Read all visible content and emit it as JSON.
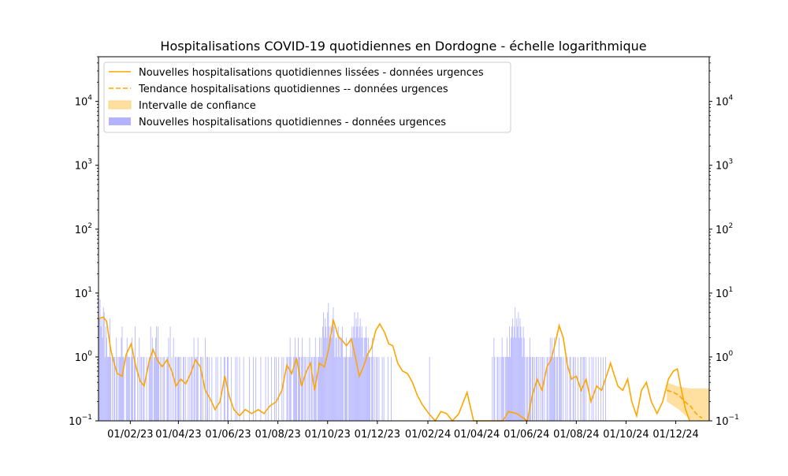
{
  "colors": {
    "bars": "#b3b3ff",
    "smoothed": "#ffa500",
    "trend": "#ffa500",
    "confidence": "#ffd580"
  },
  "chart_data": {
    "type": "bar",
    "title": "Hospitalisations COVID-19 quotidiennes en Dordogne - échelle logarithmique",
    "xlabel": "",
    "ylabel": "",
    "y_scale": "log",
    "ylim": [
      0.1,
      50000
    ],
    "xlim": [
      "2022-12-24",
      "2025-01-11"
    ],
    "x_ticks": [
      "01/02/23",
      "01/04/23",
      "01/06/23",
      "01/08/23",
      "01/10/23",
      "01/12/23",
      "01/02/24",
      "01/04/24",
      "01/06/24",
      "01/08/24",
      "01/10/24",
      "01/12/24"
    ],
    "y_ticks": [
      {
        "value": 0.1,
        "base": "10",
        "exp": "−1"
      },
      {
        "value": 1,
        "base": "10",
        "exp": "0"
      },
      {
        "value": 10,
        "base": "10",
        "exp": "1"
      },
      {
        "value": 100,
        "base": "10",
        "exp": "2"
      },
      {
        "value": 1000,
        "base": "10",
        "exp": "3"
      },
      {
        "value": 10000,
        "base": "10",
        "exp": "4"
      }
    ],
    "legend_position": "top-left",
    "legend": [
      {
        "label": "Nouvelles hospitalisations quotidiennes lissées - données urgences",
        "kind": "line"
      },
      {
        "label": "Tendance hospitalisations quotidiennes -- données urgences",
        "kind": "dashed"
      },
      {
        "label": "Intervalle de confiance",
        "kind": "band"
      },
      {
        "label": "Nouvelles hospitalisations quotidiennes - données urgences",
        "kind": "bar"
      }
    ],
    "grid": false,
    "series": [
      {
        "name": "Nouvelles hospitalisations quotidiennes - données urgences",
        "type": "bar",
        "x_start": "2022-12-25",
        "values": [
          4,
          8,
          3,
          4,
          2,
          6,
          5,
          1,
          3,
          2,
          1,
          1,
          1,
          4,
          1,
          0,
          1,
          0,
          1,
          1,
          0,
          2,
          1,
          0,
          1,
          1,
          1,
          2,
          3,
          1,
          1,
          0,
          0,
          1,
          2,
          1,
          1,
          1,
          0,
          1,
          2,
          1,
          0,
          1,
          3,
          0,
          0,
          1,
          0,
          2,
          0,
          1,
          1,
          0,
          1,
          1,
          0,
          0,
          1,
          0,
          0,
          1,
          1,
          3,
          1,
          2,
          0,
          1,
          1,
          2,
          3,
          1,
          3,
          1,
          0,
          1,
          0,
          1,
          0,
          1,
          1,
          0,
          0,
          1,
          1,
          2,
          0,
          3,
          0,
          1,
          0,
          2,
          0,
          1,
          1,
          0,
          1,
          1,
          1,
          0,
          1,
          0,
          0,
          1,
          1,
          0,
          1,
          0,
          0,
          1,
          0,
          1,
          0,
          1,
          1,
          0,
          2,
          1,
          0,
          1,
          1,
          2,
          0,
          0,
          1,
          1,
          0,
          1,
          0,
          0,
          2,
          0,
          1,
          1,
          0,
          1,
          0,
          0,
          1,
          0,
          0,
          0,
          0,
          1,
          0,
          1,
          0,
          0,
          0,
          1,
          0,
          0,
          0,
          1,
          1,
          0,
          0,
          1,
          1,
          0,
          0,
          0,
          1,
          0,
          0,
          0,
          0,
          1,
          0,
          1,
          0,
          0,
          1,
          0,
          0,
          0,
          0,
          1,
          0,
          0,
          0,
          0,
          0,
          0,
          1,
          0,
          0,
          0,
          0,
          1,
          0,
          0,
          1,
          0,
          0,
          0,
          0,
          0,
          1,
          0,
          0,
          0,
          0,
          0,
          1,
          0,
          0,
          1,
          0,
          0,
          0,
          1,
          0,
          0,
          0,
          1,
          0,
          1,
          0,
          0,
          1,
          0,
          0,
          0,
          1,
          0,
          1,
          0,
          0,
          0,
          1,
          1,
          0,
          1,
          2,
          1,
          0,
          0,
          1,
          1,
          2,
          1,
          1,
          0,
          2,
          1,
          1,
          0,
          1,
          2,
          1,
          0,
          1,
          1,
          0,
          1,
          0,
          1,
          2,
          0,
          1,
          1,
          0,
          1,
          1,
          2,
          1,
          0,
          1,
          1,
          2,
          1,
          2,
          1,
          3,
          5,
          2,
          4,
          3,
          2,
          5,
          7,
          3,
          2,
          3,
          2,
          4,
          6,
          3,
          1,
          2,
          2,
          1,
          3,
          2,
          1,
          2,
          2,
          3,
          1,
          0,
          1,
          1,
          2,
          1,
          0,
          1,
          1,
          2,
          1,
          3,
          2,
          3,
          5,
          2,
          4,
          3,
          5,
          2,
          3,
          4,
          2,
          3,
          2,
          1,
          2,
          2,
          3,
          2,
          1,
          2,
          1,
          1,
          0,
          1,
          2,
          1,
          0,
          1,
          0,
          1,
          1,
          0,
          1,
          0,
          0,
          0,
          1,
          0,
          1,
          0,
          0,
          0,
          0,
          1,
          0,
          0,
          0,
          1,
          0,
          0,
          0,
          0,
          0,
          0,
          0,
          0,
          0,
          0,
          0,
          0,
          0,
          0,
          0,
          0,
          0,
          0,
          0,
          0,
          0,
          0,
          0,
          0,
          0,
          0,
          0,
          0,
          0,
          0,
          0,
          0,
          0,
          0,
          0,
          0,
          0,
          0,
          0,
          0,
          0,
          0,
          0,
          0,
          0,
          0,
          1,
          0,
          0,
          0,
          0,
          0,
          0,
          0,
          0,
          0,
          0,
          0,
          0,
          0,
          0,
          0,
          0,
          0,
          0,
          0,
          0,
          0,
          0,
          0,
          0,
          0,
          0,
          0,
          0,
          0,
          0,
          0,
          0,
          0,
          0,
          0,
          0,
          0,
          0,
          0,
          0,
          0,
          0,
          0,
          0,
          0,
          0,
          0,
          0,
          0,
          0,
          0,
          0,
          0,
          0,
          0,
          0,
          0,
          0,
          0,
          0,
          0,
          0,
          0,
          0,
          0,
          0,
          0,
          0,
          0,
          0,
          0,
          0,
          0,
          0,
          0,
          0,
          1,
          0,
          2,
          1,
          0,
          0,
          1,
          1,
          0,
          1,
          0,
          1,
          2,
          1,
          1,
          0,
          1,
          1,
          2,
          1,
          1,
          3,
          1,
          2,
          3,
          4,
          2,
          3,
          6,
          2,
          4,
          3,
          5,
          2,
          4,
          3,
          2,
          1,
          3,
          2,
          1,
          0,
          1,
          1,
          0,
          1,
          2,
          1,
          0,
          1,
          1,
          0,
          1,
          0,
          1,
          1,
          0,
          1,
          0,
          1,
          0,
          1,
          1,
          0,
          1,
          0,
          0,
          1,
          1,
          0,
          1,
          2,
          1,
          2,
          1,
          1,
          2,
          1,
          0,
          1,
          1,
          0,
          2,
          1,
          1,
          1,
          0,
          1,
          0,
          0,
          1,
          0,
          1,
          0,
          0,
          1,
          1,
          0,
          0,
          1,
          1,
          0,
          1,
          0,
          0,
          1,
          0,
          0,
          1,
          0,
          1,
          0,
          1,
          1,
          0,
          1,
          0,
          0,
          0,
          1,
          0,
          0,
          1,
          0,
          1,
          0,
          0,
          1,
          0,
          0,
          1,
          0,
          0,
          1,
          0,
          0,
          1,
          0,
          0,
          1,
          0,
          0,
          0
        ]
      },
      {
        "name": "Nouvelles hospitalisations quotidiennes lissées - données urgences",
        "type": "line",
        "points": [
          [
            "2022-12-25",
            4.0
          ],
          [
            "2022-12-30",
            4.2
          ],
          [
            "2023-01-03",
            3.6
          ],
          [
            "2023-01-08",
            1.3
          ],
          [
            "2023-01-12",
            0.8
          ],
          [
            "2023-01-16",
            0.55
          ],
          [
            "2023-01-22",
            0.5
          ],
          [
            "2023-01-27",
            1.1
          ],
          [
            "2023-02-02",
            1.6
          ],
          [
            "2023-02-08",
            0.7
          ],
          [
            "2023-02-13",
            0.42
          ],
          [
            "2023-02-18",
            0.35
          ],
          [
            "2023-02-24",
            0.85
          ],
          [
            "2023-03-01",
            1.3
          ],
          [
            "2023-03-06",
            0.9
          ],
          [
            "2023-03-12",
            0.7
          ],
          [
            "2023-03-18",
            0.9
          ],
          [
            "2023-03-24",
            0.6
          ],
          [
            "2023-03-29",
            0.35
          ],
          [
            "2023-04-04",
            0.45
          ],
          [
            "2023-04-10",
            0.38
          ],
          [
            "2023-04-16",
            0.55
          ],
          [
            "2023-04-22",
            0.9
          ],
          [
            "2023-04-28",
            0.7
          ],
          [
            "2023-05-04",
            0.3
          ],
          [
            "2023-05-10",
            0.22
          ],
          [
            "2023-05-16",
            0.15
          ],
          [
            "2023-05-22",
            0.2
          ],
          [
            "2023-05-28",
            0.5
          ],
          [
            "2023-06-02",
            0.25
          ],
          [
            "2023-06-08",
            0.15
          ],
          [
            "2023-06-15",
            0.12
          ],
          [
            "2023-06-22",
            0.15
          ],
          [
            "2023-06-30",
            0.13
          ],
          [
            "2023-07-08",
            0.15
          ],
          [
            "2023-07-15",
            0.13
          ],
          [
            "2023-07-22",
            0.17
          ],
          [
            "2023-07-30",
            0.2
          ],
          [
            "2023-08-06",
            0.3
          ],
          [
            "2023-08-12",
            0.75
          ],
          [
            "2023-08-18",
            0.55
          ],
          [
            "2023-08-24",
            0.95
          ],
          [
            "2023-08-30",
            0.35
          ],
          [
            "2023-09-05",
            0.6
          ],
          [
            "2023-09-10",
            0.8
          ],
          [
            "2023-09-15",
            0.3
          ],
          [
            "2023-09-21",
            0.8
          ],
          [
            "2023-09-27",
            0.7
          ],
          [
            "2023-10-02",
            1.3
          ],
          [
            "2023-10-08",
            3.8
          ],
          [
            "2023-10-14",
            2.1
          ],
          [
            "2023-10-19",
            1.8
          ],
          [
            "2023-10-24",
            1.5
          ],
          [
            "2023-10-30",
            1.9
          ],
          [
            "2023-11-04",
            1.0
          ],
          [
            "2023-11-09",
            0.5
          ],
          [
            "2023-11-14",
            0.7
          ],
          [
            "2023-11-19",
            1.1
          ],
          [
            "2023-11-24",
            1.4
          ],
          [
            "2023-11-29",
            2.6
          ],
          [
            "2023-12-04",
            3.3
          ],
          [
            "2023-12-10",
            2.4
          ],
          [
            "2023-12-15",
            1.6
          ],
          [
            "2023-12-20",
            1.5
          ],
          [
            "2023-12-26",
            0.8
          ],
          [
            "2024-01-01",
            0.6
          ],
          [
            "2024-01-07",
            0.55
          ],
          [
            "2024-01-13",
            0.4
          ],
          [
            "2024-01-19",
            0.25
          ],
          [
            "2024-01-25",
            0.18
          ],
          [
            "2024-02-02",
            0.13
          ],
          [
            "2024-02-10",
            0.1
          ],
          [
            "2024-02-17",
            0.14
          ],
          [
            "2024-02-24",
            0.13
          ],
          [
            "2024-03-02",
            0.1
          ],
          [
            "2024-03-10",
            0.13
          ],
          [
            "2024-03-20",
            0.28
          ],
          [
            "2024-03-28",
            0.1
          ],
          [
            "2024-04-10",
            0.1
          ],
          [
            "2024-05-03",
            0.1
          ],
          [
            "2024-05-10",
            0.14
          ],
          [
            "2024-05-20",
            0.13
          ],
          [
            "2024-06-02",
            0.1
          ],
          [
            "2024-06-08",
            0.25
          ],
          [
            "2024-06-14",
            0.45
          ],
          [
            "2024-06-20",
            0.3
          ],
          [
            "2024-06-26",
            0.7
          ],
          [
            "2024-07-01",
            0.9
          ],
          [
            "2024-07-06",
            1.6
          ],
          [
            "2024-07-11",
            3.1
          ],
          [
            "2024-07-16",
            2.0
          ],
          [
            "2024-07-21",
            0.75
          ],
          [
            "2024-07-26",
            0.45
          ],
          [
            "2024-08-01",
            0.5
          ],
          [
            "2024-08-07",
            0.3
          ],
          [
            "2024-08-13",
            0.45
          ],
          [
            "2024-08-19",
            0.2
          ],
          [
            "2024-08-26",
            0.35
          ],
          [
            "2024-09-01",
            0.3
          ],
          [
            "2024-09-07",
            0.5
          ],
          [
            "2024-09-12",
            0.8
          ],
          [
            "2024-09-16",
            0.55
          ],
          [
            "2024-09-21",
            0.35
          ],
          [
            "2024-09-27",
            0.3
          ],
          [
            "2024-10-03",
            0.45
          ],
          [
            "2024-10-08",
            0.2
          ],
          [
            "2024-10-14",
            0.12
          ],
          [
            "2024-10-20",
            0.3
          ],
          [
            "2024-10-26",
            0.4
          ],
          [
            "2024-11-01",
            0.2
          ],
          [
            "2024-11-08",
            0.13
          ],
          [
            "2024-11-15",
            0.2
          ],
          [
            "2024-11-22",
            0.45
          ],
          [
            "2024-11-28",
            0.6
          ],
          [
            "2024-12-03",
            0.65
          ],
          [
            "2024-12-08",
            0.3
          ],
          [
            "2024-12-13",
            0.15
          ],
          [
            "2024-12-18",
            0.1
          ]
        ]
      },
      {
        "name": "Tendance hospitalisations quotidiennes -- données urgences",
        "type": "dashed",
        "points": [
          [
            "2024-11-20",
            0.3
          ],
          [
            "2024-11-28",
            0.28
          ],
          [
            "2024-12-05",
            0.25
          ],
          [
            "2024-12-12",
            0.2
          ],
          [
            "2024-12-19",
            0.17
          ],
          [
            "2024-12-26",
            0.13
          ],
          [
            "2025-01-02",
            0.11
          ]
        ]
      },
      {
        "name": "Intervalle de confiance",
        "type": "band",
        "lower": [
          [
            "2024-11-20",
            0.2
          ],
          [
            "2024-12-05",
            0.15
          ],
          [
            "2024-12-20",
            0.1
          ],
          [
            "2025-01-11",
            0.1
          ]
        ],
        "upper": [
          [
            "2024-11-20",
            0.4
          ],
          [
            "2024-12-05",
            0.34
          ],
          [
            "2024-12-20",
            0.32
          ],
          [
            "2025-01-11",
            0.32
          ]
        ]
      }
    ]
  }
}
